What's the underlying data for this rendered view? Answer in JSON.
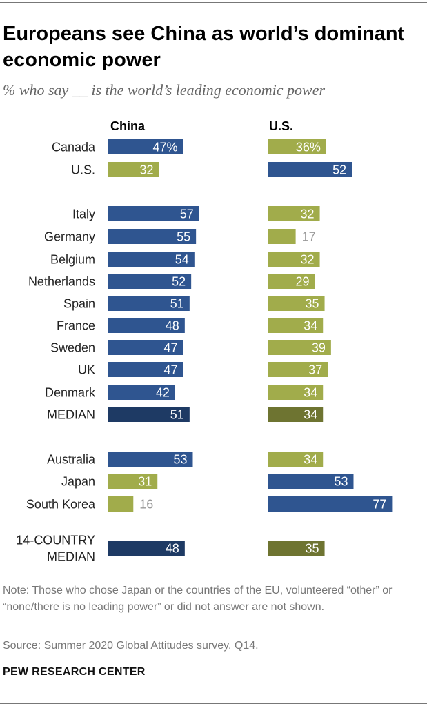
{
  "title": "Europeans see China as world’s dominant economic power",
  "subtitle": "% who say __ is the world’s leading economic power",
  "note": "Note: Those who chose Japan or the countries of the EU, volunteered “other” or “none/there is no leading power” or did not answer are not shown.",
  "source": "Source: Summer 2020 Global Attitudes survey. Q14.",
  "brand": "PEW RESEARCH CENTER",
  "colors": {
    "blue": "#2f5590",
    "green": "#a1ac4b",
    "median_blue": "#1e3a64",
    "median_green": "#6e7431",
    "label_outside": "#999999"
  },
  "chart_data": {
    "type": "bar",
    "orientation": "horizontal",
    "title": "Europeans see China as world’s dominant economic power",
    "series": [
      {
        "name": "China",
        "values": [
          47,
          32,
          57,
          55,
          54,
          52,
          51,
          48,
          47,
          47,
          42,
          51,
          53,
          31,
          16,
          48
        ]
      },
      {
        "name": "U.S.",
        "values": [
          36,
          52,
          32,
          17,
          32,
          29,
          35,
          34,
          39,
          37,
          34,
          34,
          34,
          53,
          77,
          35
        ]
      }
    ],
    "categories": [
      "Canada",
      "U.S.",
      "Italy",
      "Germany",
      "Belgium",
      "Netherlands",
      "Spain",
      "France",
      "Sweden",
      "UK",
      "Denmark",
      "MEDIAN",
      "Australia",
      "Japan",
      "South Korea",
      "14-COUNTRY MEDIAN"
    ],
    "category_lines": [
      [
        "Canada"
      ],
      [
        "U.S."
      ],
      [
        "Italy"
      ],
      [
        "Germany"
      ],
      [
        "Belgium"
      ],
      [
        "Netherlands"
      ],
      [
        "Spain"
      ],
      [
        "France"
      ],
      [
        "Sweden"
      ],
      [
        "UK"
      ],
      [
        "Denmark"
      ],
      [
        "MEDIAN"
      ],
      [
        "Australia"
      ],
      [
        "Japan"
      ],
      [
        "South Korea"
      ],
      [
        "14-COUNTRY",
        "MEDIAN"
      ]
    ],
    "china_labels": [
      "47%",
      "32",
      "57",
      "55",
      "54",
      "52",
      "51",
      "48",
      "47",
      "47",
      "42",
      "51",
      "53",
      "31",
      "16",
      "48"
    ],
    "us_labels": [
      "36%",
      "52",
      "32",
      "17",
      "32",
      "29",
      "35",
      "34",
      "39",
      "37",
      "34",
      "34",
      "34",
      "53",
      "77",
      "35"
    ],
    "china_color_roles": [
      "blue",
      "green",
      "blue",
      "blue",
      "blue",
      "blue",
      "blue",
      "blue",
      "blue",
      "blue",
      "blue",
      "median_blue",
      "blue",
      "green",
      "green",
      "median_blue"
    ],
    "us_color_roles": [
      "green",
      "blue",
      "green",
      "green",
      "green",
      "green",
      "green",
      "green",
      "green",
      "green",
      "green",
      "median_green",
      "green",
      "blue",
      "blue",
      "median_green"
    ],
    "xlim": [
      0,
      100
    ]
  }
}
